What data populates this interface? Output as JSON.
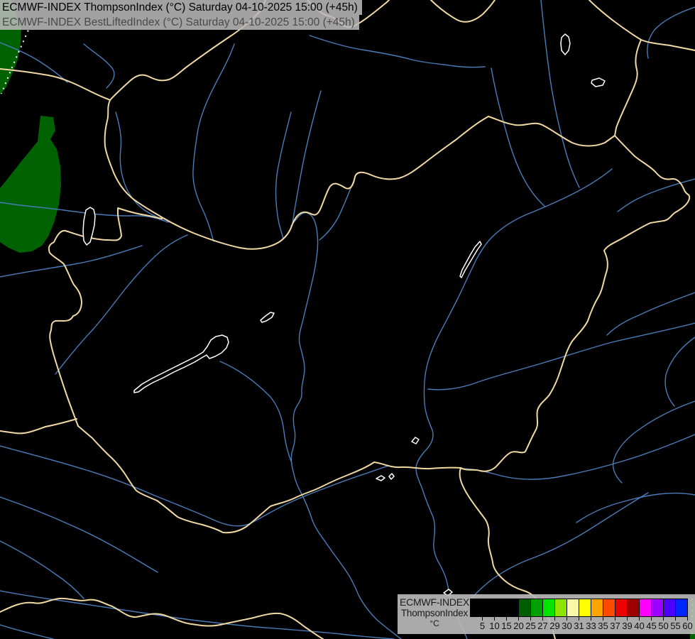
{
  "header": {
    "line1": "ECMWF-INDEX ThompsonIndex (°C) Saturday 04-10-2025 15:00 (+45h)",
    "line2": "ECMWF-INDEX BestLiftedIndex (°C) Saturday 04-10-2025 15:00 (+45h)"
  },
  "legend": {
    "product": "ECMWF-INDEX",
    "parameter": "ThompsonIndex",
    "unit": "°C",
    "boxes": [
      {
        "label": "5",
        "color": "#000000"
      },
      {
        "label": "10",
        "color": "#000000"
      },
      {
        "label": "15",
        "color": "#000000"
      },
      {
        "label": "20",
        "color": "#000000"
      },
      {
        "label": "25",
        "color": "#005e00"
      },
      {
        "label": "27",
        "color": "#00a000"
      },
      {
        "label": "29",
        "color": "#00e400"
      },
      {
        "label": "30",
        "color": "#8ce400"
      },
      {
        "label": "31",
        "color": "#f8f8a6"
      },
      {
        "label": "33",
        "color": "#ffff00"
      },
      {
        "label": "35",
        "color": "#ffa500"
      },
      {
        "label": "37",
        "color": "#ff4a00"
      },
      {
        "label": "39",
        "color": "#ef0000"
      },
      {
        "label": "40",
        "color": "#9e0000"
      },
      {
        "label": "45",
        "color": "#ff00ff"
      },
      {
        "label": "50",
        "color": "#9c00ff"
      },
      {
        "label": "55",
        "color": "#4b00ff"
      },
      {
        "label": "60",
        "color": "#0026ff"
      }
    ]
  },
  "map": {
    "background_color": "#000000",
    "country_border_color": "#f1d9a3",
    "river_color": "#4a7cb8",
    "lake_outline_color": "#ffffff",
    "shaded_index_area_color": "#006200"
  }
}
